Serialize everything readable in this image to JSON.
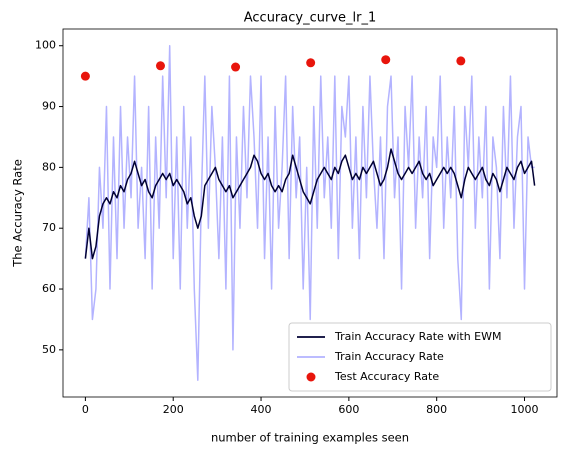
{
  "chart_data": {
    "type": "line",
    "title": "Accuracy_curve_lr_1",
    "x_label": "number of training examples seen",
    "y_label": "The Accuracy Rate",
    "xlim": [
      -51,
      1074
    ],
    "ylim": [
      42.25,
      102.75
    ],
    "xticks": [
      0,
      200,
      400,
      600,
      800,
      1000
    ],
    "yticks": [
      50,
      60,
      70,
      80,
      90,
      100
    ],
    "legend": "lower right",
    "grid": false,
    "series": [
      {
        "name": "Train Accuracy Rate with EWM",
        "type": "line",
        "color": "#000033",
        "x": [
          0,
          8,
          16,
          24,
          32,
          40,
          48,
          56,
          64,
          72,
          80,
          88,
          96,
          104,
          112,
          120,
          128,
          136,
          144,
          152,
          160,
          168,
          176,
          184,
          192,
          200,
          208,
          216,
          224,
          232,
          240,
          248,
          256,
          264,
          272,
          280,
          288,
          296,
          304,
          312,
          320,
          328,
          336,
          344,
          352,
          360,
          368,
          376,
          384,
          392,
          400,
          408,
          416,
          424,
          432,
          440,
          448,
          456,
          464,
          472,
          480,
          488,
          496,
          504,
          512,
          520,
          528,
          536,
          544,
          552,
          560,
          568,
          576,
          584,
          592,
          600,
          608,
          616,
          624,
          632,
          640,
          648,
          656,
          664,
          672,
          680,
          688,
          696,
          704,
          712,
          720,
          728,
          736,
          744,
          752,
          760,
          768,
          776,
          784,
          792,
          800,
          808,
          816,
          824,
          832,
          840,
          848,
          856,
          864,
          872,
          880,
          888,
          896,
          904,
          912,
          920,
          928,
          936,
          944,
          952,
          960,
          968,
          976,
          984,
          992,
          1000,
          1008,
          1016,
          1023
        ],
        "values": [
          65,
          70,
          65,
          67,
          72,
          74,
          75,
          74,
          76,
          75,
          77,
          76,
          78,
          79,
          81,
          79,
          77,
          78,
          76,
          75,
          77,
          78,
          79,
          78,
          79,
          77,
          78,
          77,
          76,
          74,
          75,
          72,
          70,
          72,
          77,
          78,
          79,
          80,
          78,
          77,
          76,
          77,
          75,
          76,
          77,
          78,
          79,
          80,
          82,
          81,
          79,
          78,
          79,
          77,
          76,
          77,
          76,
          78,
          79,
          82,
          80,
          78,
          76,
          75,
          74,
          76,
          78,
          79,
          80,
          79,
          78,
          80,
          79,
          81,
          82,
          80,
          78,
          79,
          78,
          80,
          79,
          80,
          81,
          79,
          77,
          78,
          80,
          83,
          81,
          79,
          78,
          79,
          80,
          79,
          80,
          81,
          79,
          78,
          79,
          77,
          78,
          79,
          80,
          79,
          80,
          79,
          77,
          75,
          78,
          80,
          79,
          78,
          79,
          80,
          78,
          77,
          79,
          78,
          76,
          78,
          80,
          79,
          78,
          80,
          81,
          79,
          80,
          81,
          77
        ]
      },
      {
        "name": "Train Accuracy Rate",
        "type": "line",
        "color": "#b3b3ff",
        "x": [
          0,
          8,
          16,
          24,
          32,
          40,
          48,
          56,
          64,
          72,
          80,
          88,
          96,
          104,
          112,
          120,
          128,
          136,
          144,
          152,
          160,
          168,
          176,
          184,
          192,
          200,
          208,
          216,
          224,
          232,
          240,
          248,
          256,
          264,
          272,
          280,
          288,
          296,
          304,
          312,
          320,
          328,
          336,
          344,
          352,
          360,
          368,
          376,
          384,
          392,
          400,
          408,
          416,
          424,
          432,
          440,
          448,
          456,
          464,
          472,
          480,
          488,
          496,
          504,
          512,
          520,
          528,
          536,
          544,
          552,
          560,
          568,
          576,
          584,
          592,
          600,
          608,
          616,
          624,
          632,
          640,
          648,
          656,
          664,
          672,
          680,
          688,
          696,
          704,
          712,
          720,
          728,
          736,
          744,
          752,
          760,
          768,
          776,
          784,
          792,
          800,
          808,
          816,
          824,
          832,
          840,
          848,
          856,
          864,
          872,
          880,
          888,
          896,
          904,
          912,
          920,
          928,
          936,
          944,
          952,
          960,
          968,
          976,
          984,
          992,
          1000,
          1008,
          1016,
          1023
        ],
        "values": [
          65,
          75,
          55,
          60,
          80,
          70,
          90,
          60,
          85,
          65,
          90,
          70,
          85,
          75,
          95,
          70,
          80,
          65,
          90,
          60,
          85,
          70,
          95,
          75,
          100,
          65,
          85,
          60,
          90,
          70,
          85,
          60,
          45,
          75,
          95,
          70,
          90,
          80,
          65,
          85,
          60,
          95,
          50,
          85,
          70,
          90,
          75,
          95,
          85,
          70,
          95,
          65,
          85,
          60,
          90,
          70,
          80,
          95,
          65,
          90,
          75,
          85,
          60,
          80,
          55,
          90,
          70,
          95,
          75,
          85,
          70,
          95,
          65,
          90,
          85,
          95,
          70,
          85,
          65,
          90,
          75,
          95,
          80,
          70,
          85,
          65,
          90,
          95,
          75,
          85,
          60,
          90,
          80,
          95,
          70,
          85,
          75,
          90,
          65,
          85,
          80,
          95,
          70,
          85,
          75,
          90,
          65,
          55,
          90,
          80,
          95,
          70,
          85,
          75,
          90,
          60,
          85,
          80,
          65,
          90,
          75,
          95,
          70,
          85,
          90,
          60,
          85,
          80,
          80
        ]
      },
      {
        "name": "Test Accuracy Rate",
        "type": "scatter",
        "color": "#e8150c",
        "x": [
          0,
          171,
          342,
          513,
          684,
          855
        ],
        "values": [
          95,
          96.7,
          96.5,
          97.2,
          97.7,
          97.5
        ]
      }
    ]
  }
}
